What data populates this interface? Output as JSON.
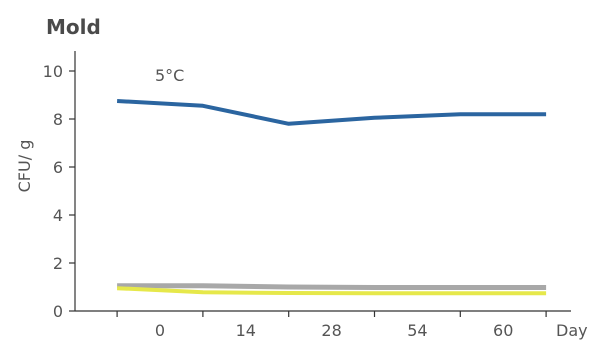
{
  "chart_data": {
    "type": "line",
    "title": "Mold",
    "annotation": "5°C",
    "xlabel": "Day",
    "ylabel": "CFU/ g",
    "categories": [
      "",
      "0",
      "",
      "14",
      "",
      "28",
      "",
      "54",
      "",
      "60",
      ""
    ],
    "category_ticks_shown": [
      "0",
      "14",
      "28",
      "54",
      "60"
    ],
    "ylim": [
      0,
      10
    ],
    "yticks": [
      0,
      2,
      4,
      6,
      8,
      10
    ],
    "grid": false,
    "series": [
      {
        "color": "#2b65a0",
        "points": [
          [
            -0.5,
            8.75
          ],
          [
            0.5,
            8.55
          ],
          [
            1.5,
            7.8
          ],
          [
            2.5,
            8.05
          ],
          [
            3.5,
            8.2
          ],
          [
            4.5,
            8.2
          ]
        ]
      },
      {
        "color": "#a8a8a8",
        "points": [
          [
            -0.5,
            1.05
          ],
          [
            0.5,
            1.05
          ],
          [
            1.5,
            1.0
          ],
          [
            2.5,
            0.98
          ],
          [
            3.5,
            0.98
          ],
          [
            4.5,
            0.98
          ]
        ]
      },
      {
        "color": "#e6e84a",
        "points": [
          [
            -0.5,
            0.95
          ],
          [
            0.5,
            0.78
          ],
          [
            1.5,
            0.75
          ],
          [
            2.5,
            0.74
          ],
          [
            3.5,
            0.74
          ],
          [
            4.5,
            0.74
          ]
        ]
      }
    ]
  }
}
